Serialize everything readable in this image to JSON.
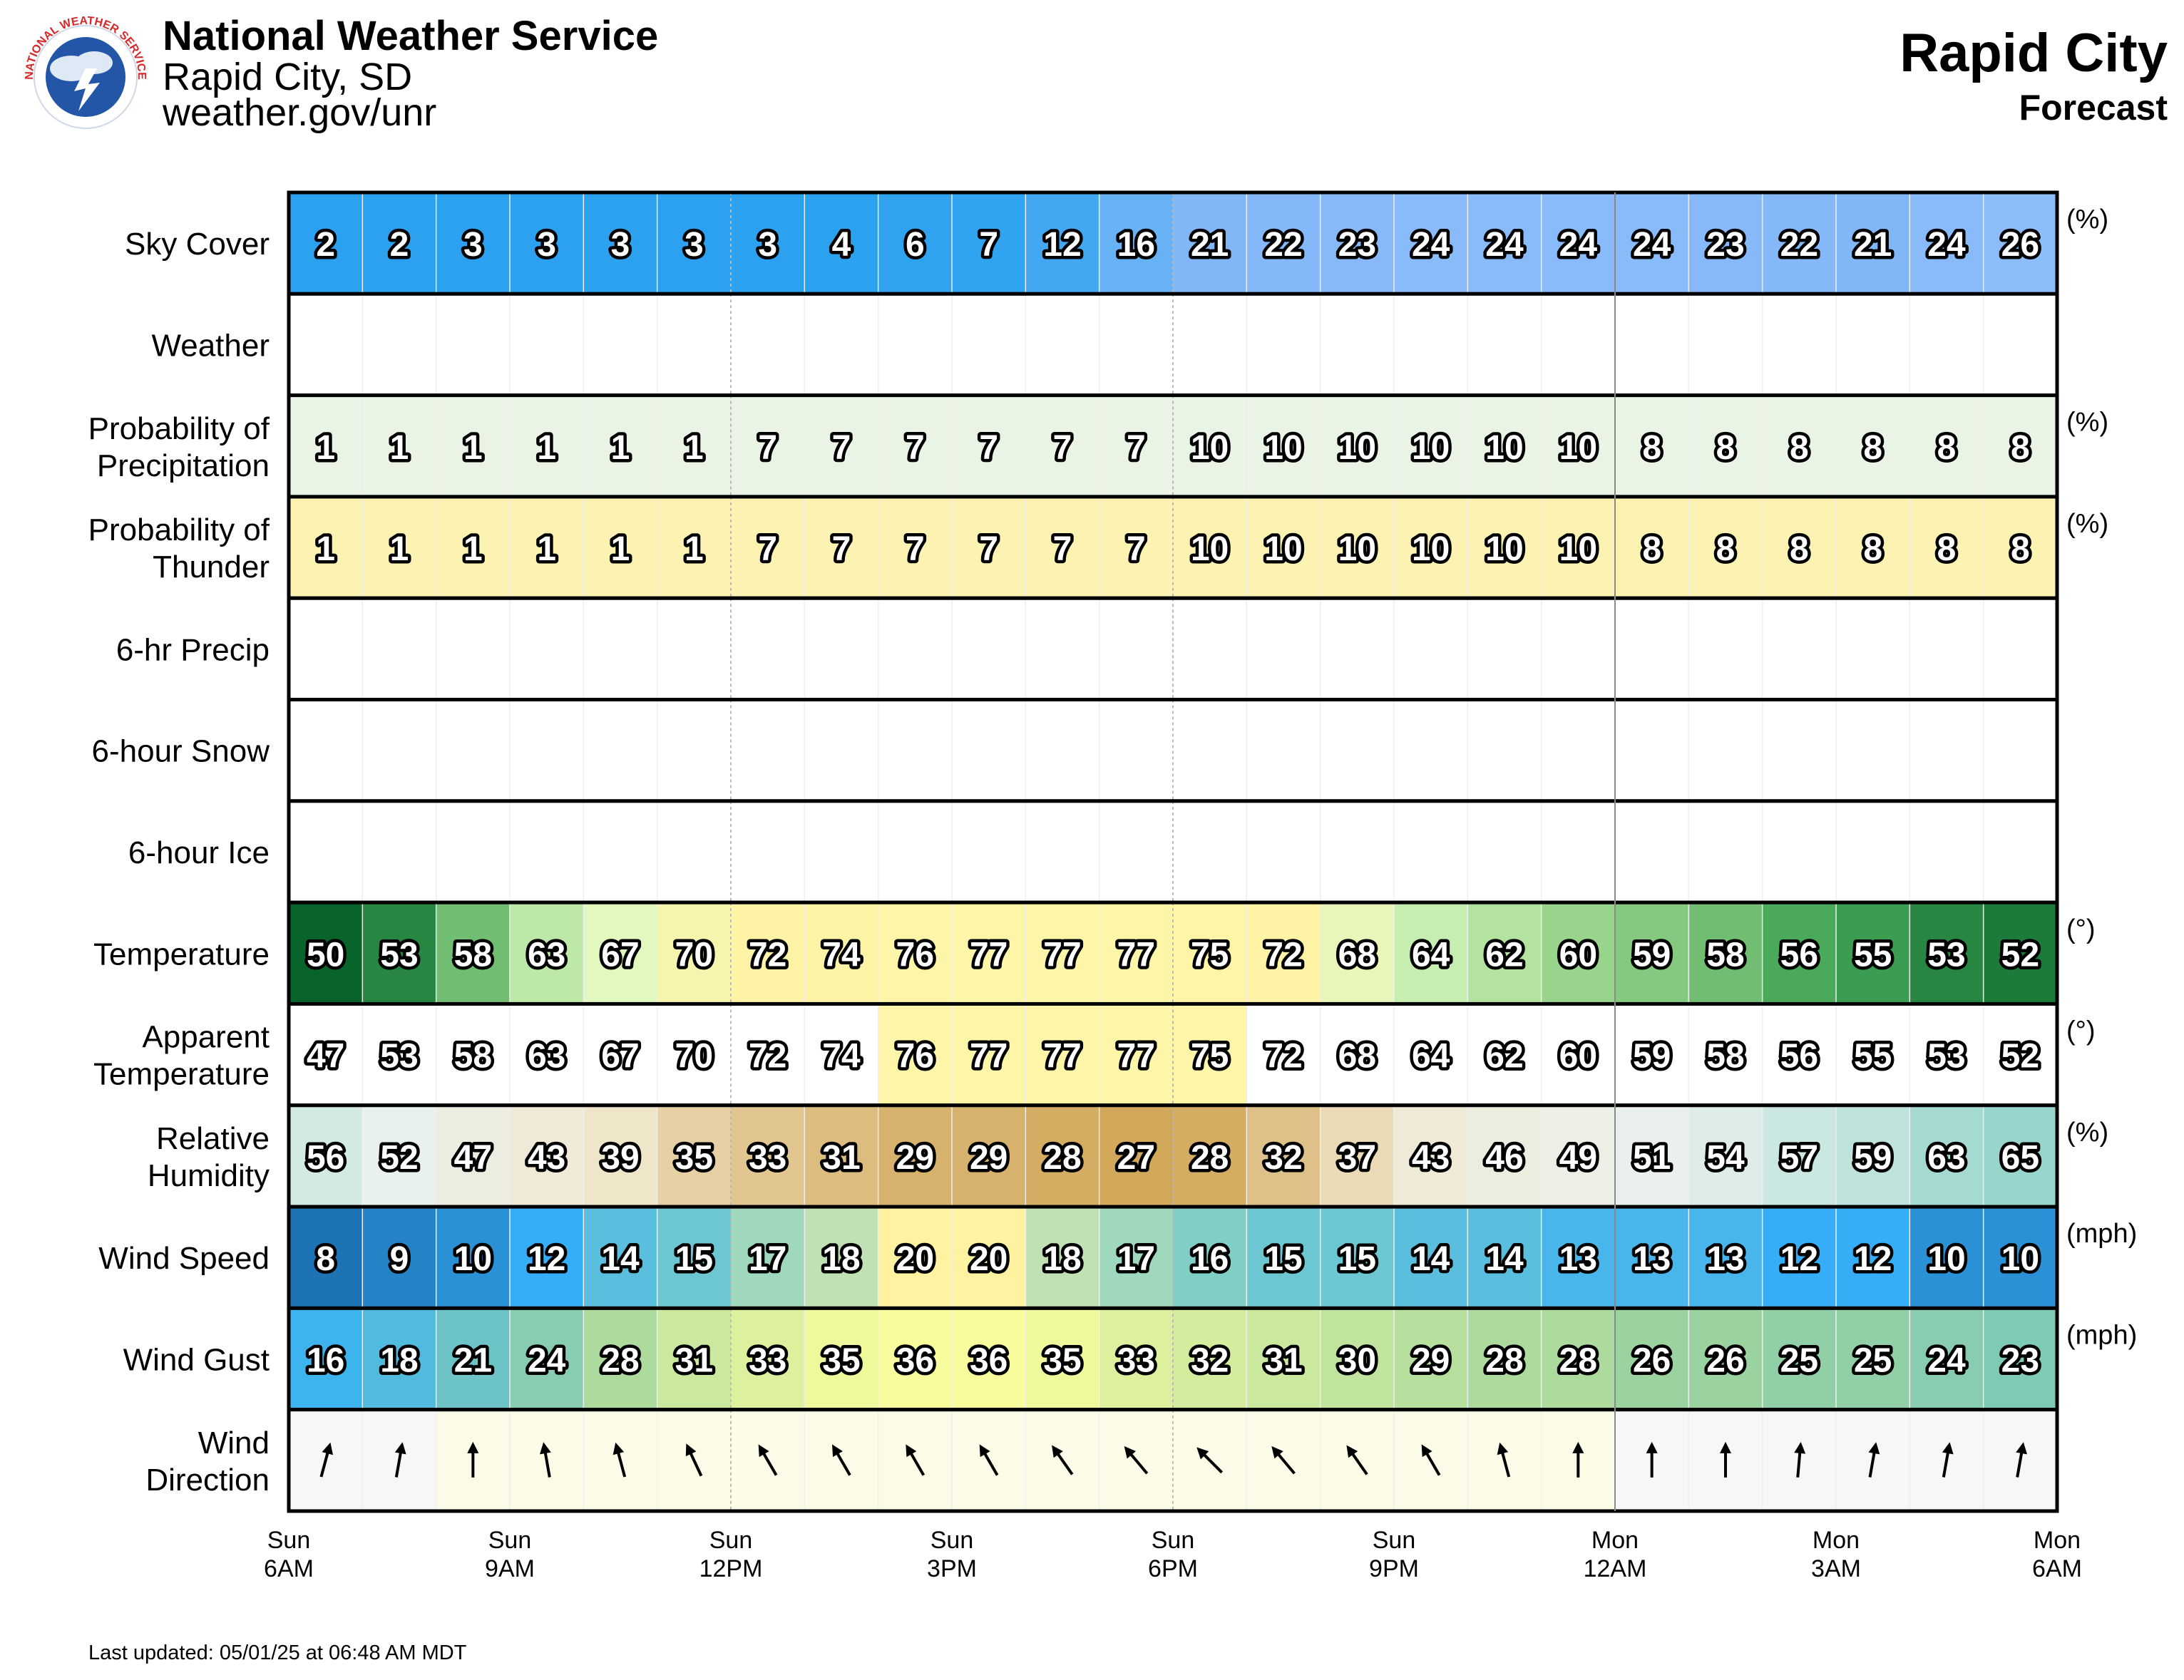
{
  "header": {
    "org": "National Weather Service",
    "office": "Rapid City, SD",
    "url": "weather.gov/unr",
    "logo_text": "NATIONAL WEATHER SERVICE",
    "title": "Rapid City",
    "subtitle": "Forecast",
    "last_updated": "Last updated: 05/01/25 at 06:48 AM MDT"
  },
  "chart_data": {
    "type": "table",
    "hours": 24,
    "x_ticks": [
      {
        "day": "Sun",
        "time": "6AM"
      },
      {
        "day": "Sun",
        "time": "9AM"
      },
      {
        "day": "Sun",
        "time": "12PM"
      },
      {
        "day": "Sun",
        "time": "3PM"
      },
      {
        "day": "Sun",
        "time": "6PM"
      },
      {
        "day": "Sun",
        "time": "9PM"
      },
      {
        "day": "Mon",
        "time": "12AM"
      },
      {
        "day": "Mon",
        "time": "3AM"
      },
      {
        "day": "Mon",
        "time": "6AM"
      }
    ],
    "rows": [
      {
        "key": "sky",
        "label": [
          "Sky Cover"
        ],
        "unit": "(%)",
        "values": [
          2,
          2,
          3,
          3,
          3,
          3,
          3,
          4,
          6,
          7,
          12,
          16,
          21,
          22,
          23,
          24,
          24,
          24,
          24,
          23,
          22,
          21,
          24,
          26
        ]
      },
      {
        "key": "wx",
        "label": [
          "Weather"
        ],
        "unit": "",
        "values": []
      },
      {
        "key": "pop",
        "label": [
          "Probability of",
          "Precipitation"
        ],
        "unit": "(%)",
        "values": [
          1,
          1,
          1,
          1,
          1,
          1,
          7,
          7,
          7,
          7,
          7,
          7,
          10,
          10,
          10,
          10,
          10,
          10,
          8,
          8,
          8,
          8,
          8,
          8
        ]
      },
      {
        "key": "thunder",
        "label": [
          "Probability of",
          "Thunder"
        ],
        "unit": "(%)",
        "values": [
          1,
          1,
          1,
          1,
          1,
          1,
          7,
          7,
          7,
          7,
          7,
          7,
          10,
          10,
          10,
          10,
          10,
          10,
          8,
          8,
          8,
          8,
          8,
          8
        ]
      },
      {
        "key": "qpf",
        "label": [
          "6-hr Precip"
        ],
        "unit": "",
        "values": []
      },
      {
        "key": "snow",
        "label": [
          "6-hour Snow"
        ],
        "unit": "",
        "values": []
      },
      {
        "key": "ice",
        "label": [
          "6-hour Ice"
        ],
        "unit": "",
        "values": []
      },
      {
        "key": "temp",
        "label": [
          "Temperature"
        ],
        "unit": "(°)",
        "values": [
          50,
          53,
          58,
          63,
          67,
          70,
          72,
          74,
          76,
          77,
          77,
          77,
          75,
          72,
          68,
          64,
          62,
          60,
          59,
          58,
          56,
          55,
          53,
          52
        ]
      },
      {
        "key": "apparent",
        "label": [
          "Apparent",
          "Temperature"
        ],
        "unit": "(°)",
        "values": [
          47,
          53,
          58,
          63,
          67,
          70,
          72,
          74,
          76,
          77,
          77,
          77,
          75,
          72,
          68,
          64,
          62,
          60,
          59,
          58,
          56,
          55,
          53,
          52
        ]
      },
      {
        "key": "rh",
        "label": [
          "Relative",
          "Humidity"
        ],
        "unit": "(%)",
        "values": [
          56,
          52,
          47,
          43,
          39,
          35,
          33,
          31,
          29,
          29,
          28,
          27,
          28,
          32,
          37,
          43,
          46,
          49,
          51,
          54,
          57,
          59,
          63,
          65
        ]
      },
      {
        "key": "wspd",
        "label": [
          "Wind Speed"
        ],
        "unit": "(mph)",
        "values": [
          8,
          9,
          10,
          12,
          14,
          15,
          17,
          18,
          20,
          20,
          18,
          17,
          16,
          15,
          15,
          14,
          14,
          13,
          13,
          13,
          12,
          12,
          10,
          10
        ]
      },
      {
        "key": "gust",
        "label": [
          "Wind Gust"
        ],
        "unit": "(mph)",
        "values": [
          16,
          18,
          21,
          24,
          28,
          31,
          33,
          35,
          36,
          36,
          35,
          33,
          32,
          31,
          30,
          29,
          28,
          28,
          26,
          26,
          25,
          25,
          24,
          23
        ]
      },
      {
        "key": "wdir",
        "label": [
          "Wind",
          "Direction"
        ],
        "unit": "",
        "values_deg": [
          15,
          10,
          0,
          350,
          345,
          335,
          330,
          330,
          330,
          330,
          325,
          320,
          315,
          320,
          325,
          330,
          345,
          360,
          360,
          0,
          5,
          10,
          10,
          10
        ]
      }
    ],
    "colors": {
      "sky": [
        "#2b9ff0",
        "#2ba2f0",
        "#31a4f0",
        "#3aa5f2",
        "#5fb2f3",
        "#7ab3f5",
        "#85b8f8",
        "#8dbcfa"
      ],
      "pop": "#eaf4e4",
      "thunder": "#fcf3b2",
      "temp_stops": [
        "#08642a",
        "#3fa254",
        "#a7dd94",
        "#dcf9c3",
        "#fff3a5",
        "#fdf6a8"
      ],
      "rh_stops": [
        "#d2a85a",
        "#f1e8cf",
        "#e9f1ee",
        "#98d6cd"
      ],
      "wind_stops": [
        "#1e73b5",
        "#35aef7",
        "#7fcfc6",
        "#fff2a0"
      ],
      "gust_stops": [
        "#3eb4ef",
        "#9ad39f",
        "#f9fc9c"
      ],
      "wdir_bg": "#fbfbe8"
    }
  }
}
